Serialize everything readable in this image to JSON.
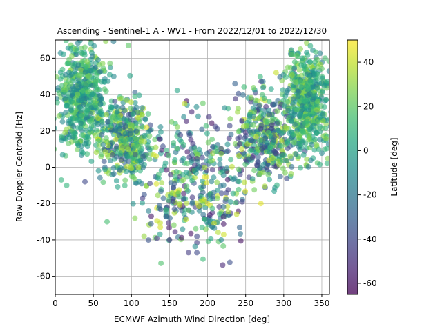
{
  "chart_data": {
    "type": "scatter",
    "title": "Ascending - Sentinel-1 A - WV1 - From 2022/12/01 to 2022/12/30",
    "xlabel": "ECMWF Azimuth Wind Direction [deg]",
    "ylabel": "Raw Doppler Centroid [Hz]",
    "xlim": [
      0,
      360
    ],
    "ylim": [
      -70,
      70
    ],
    "xticks": [
      0,
      50,
      100,
      150,
      200,
      250,
      300,
      350
    ],
    "yticks": [
      -60,
      -40,
      -20,
      0,
      20,
      40,
      60
    ],
    "grid": true,
    "colormap": "viridis",
    "marker_alpha": 0.6,
    "colorbar": {
      "label": "Latitude [deg]",
      "range": [
        -65,
        50
      ],
      "ticks": [
        -60,
        -40,
        -20,
        0,
        20,
        40
      ]
    },
    "clusters": [
      {
        "x_range": [
          0,
          75
        ],
        "y_range": [
          5,
          70
        ],
        "latitude_range": [
          -20,
          30
        ],
        "density": "very high"
      },
      {
        "x_range": [
          60,
          130
        ],
        "y_range": [
          -10,
          40
        ],
        "latitude_range": [
          -40,
          40
        ],
        "density": "high"
      },
      {
        "x_range": [
          110,
          260
        ],
        "y_range": [
          -48,
          30
        ],
        "latitude_range": [
          -60,
          45
        ],
        "density": "high"
      },
      {
        "x_range": [
          230,
          320
        ],
        "y_range": [
          -10,
          45
        ],
        "latitude_range": [
          -50,
          40
        ],
        "density": "high"
      },
      {
        "x_range": [
          300,
          360
        ],
        "y_range": [
          5,
          70
        ],
        "latitude_range": [
          -20,
          35
        ],
        "density": "very high"
      }
    ],
    "sample_points": [
      {
        "x": 68,
        "y": -30,
        "lat": 15
      },
      {
        "x": 8,
        "y": -7,
        "lat": 10
      },
      {
        "x": 15,
        "y": -10,
        "lat": 10
      },
      {
        "x": 39,
        "y": -8,
        "lat": -40
      },
      {
        "x": 270,
        "y": -20,
        "lat": 45
      },
      {
        "x": 357,
        "y": 2,
        "lat": 10
      },
      {
        "x": 175,
        "y": -47,
        "lat": -45
      },
      {
        "x": 186,
        "y": -47,
        "lat": -40
      },
      {
        "x": 150,
        "y": -40,
        "lat": -50
      },
      {
        "x": 218,
        "y": -40,
        "lat": -10
      },
      {
        "x": 236,
        "y": 46,
        "lat": -30
      },
      {
        "x": 170,
        "y": 35,
        "lat": 40
      },
      {
        "x": 96,
        "y": 67,
        "lat": 20
      },
      {
        "x": 290,
        "y": 52,
        "lat": 40
      },
      {
        "x": 310,
        "y": 62,
        "lat": 20
      },
      {
        "x": 120,
        "y": 22,
        "lat": 45
      },
      {
        "x": 245,
        "y": 10,
        "lat": 40
      },
      {
        "x": 200,
        "y": -20,
        "lat": 45
      }
    ]
  }
}
